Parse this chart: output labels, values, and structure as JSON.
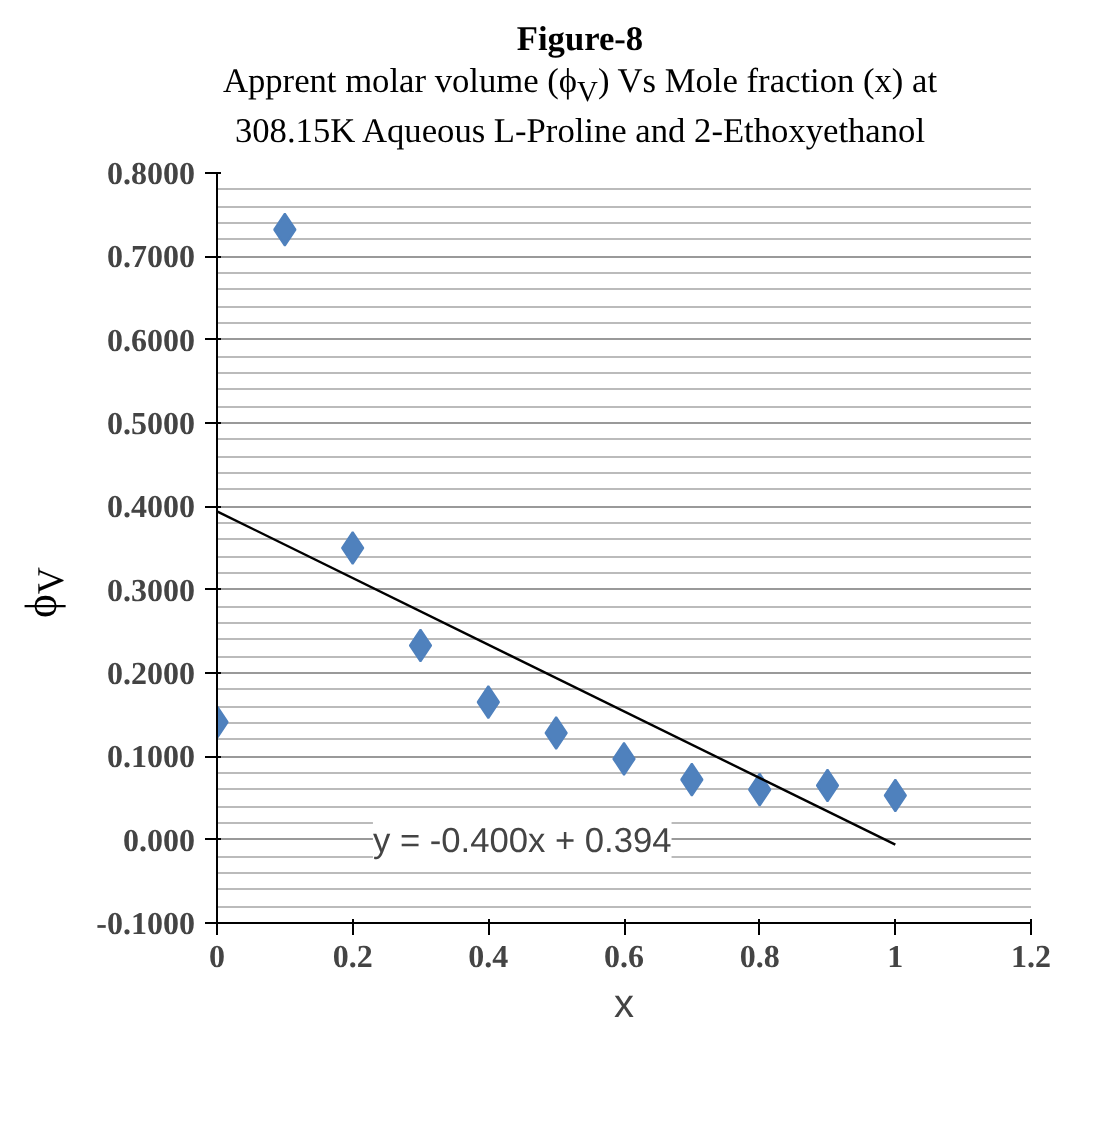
{
  "chart_data": {
    "type": "scatter",
    "title": "Figure-8",
    "subtitle": "Apprent molar volume (ϕ$_{V}$) Vs Mole fraction (x) at 308.15K Aqueous L-Proline and 2-Ethoxyethanol",
    "xlabel": "x",
    "ylabel": "ϕ$_{V}$",
    "series": [
      {
        "color": "#4f81bd",
        "marker": "diamond",
        "x": [
          0,
          0.1,
          0.2,
          0.3,
          0.4,
          0.5,
          0.6,
          0.7,
          0.8,
          0.9,
          1.0
        ],
        "values": [
          0.141,
          0.732,
          0.35,
          0.233,
          0.165,
          0.128,
          0.097,
          0.072,
          0.06,
          0.065,
          0.053
        ]
      },
      {
        "type": "line",
        "color": "#000000",
        "marker": "none",
        "x": [
          0,
          1
        ],
        "values": [
          0.394,
          -0.006
        ]
      }
    ],
    "annotations": [
      "y = -0.400x + 0.394"
    ],
    "xlim": [
      0,
      1.2
    ],
    "xticks": [
      0,
      0.2,
      0.4,
      0.6,
      0.8,
      1,
      1.2
    ],
    "ylim": [
      -0.1,
      0.8
    ],
    "yticks": [
      {
        "value": -0.1,
        "label": "-0.1000"
      },
      {
        "value": 0,
        "label": "0.000"
      },
      {
        "value": 0.1,
        "label": "0.1000"
      },
      {
        "value": 0.2,
        "label": "0.2000"
      },
      {
        "value": 0.3,
        "label": "0.3000"
      },
      {
        "value": 0.4,
        "label": "0.4000"
      },
      {
        "value": 0.5,
        "label": "0.5000"
      },
      {
        "value": 0.6,
        "label": "0.6000"
      },
      {
        "value": 0.7,
        "label": "0.7000"
      },
      {
        "value": 0.8,
        "label": "0.8000"
      }
    ],
    "grid": "y"
  }
}
